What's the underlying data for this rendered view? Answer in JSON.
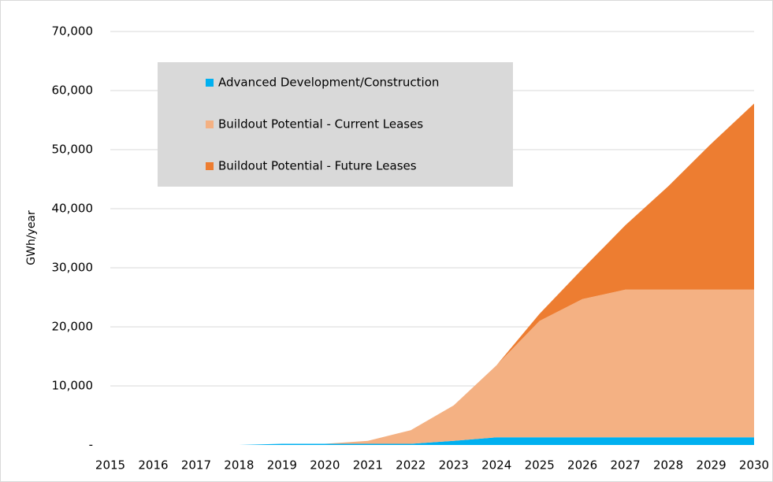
{
  "chart_data": {
    "type": "stacked_area",
    "ylabel": "GWh/year",
    "categories": [
      "2015",
      "2016",
      "2017",
      "2018",
      "2019",
      "2020",
      "2021",
      "2022",
      "2023",
      "2024",
      "2025",
      "2026",
      "2027",
      "2028",
      "2029",
      "2030"
    ],
    "series": [
      {
        "name": "Advanced Development/Construction",
        "color": "#00b0f0",
        "values": [
          0,
          0,
          0,
          0,
          200,
          200,
          200,
          200,
          700,
          1300,
          1300,
          1300,
          1300,
          1300,
          1300,
          1300
        ]
      },
      {
        "name": "Buildout Potential - Current Leases",
        "color": "#f4b183",
        "values": [
          0,
          0,
          0,
          0,
          0,
          0,
          500,
          2300,
          6000,
          12200,
          19700,
          23400,
          25000,
          25000,
          25000,
          25000
        ]
      },
      {
        "name": "Buildout Potential - Future Leases",
        "color": "#ed7d31",
        "values": [
          0,
          0,
          0,
          0,
          0,
          0,
          0,
          0,
          0,
          0,
          1200,
          5100,
          10900,
          17500,
          24700,
          31500
        ]
      }
    ],
    "ylim": [
      0,
      70000
    ],
    "yticks": [
      {
        "value": 0,
        "label": "-"
      },
      {
        "value": 10000,
        "label": "10,000"
      },
      {
        "value": 20000,
        "label": "20,000"
      },
      {
        "value": 30000,
        "label": "30,000"
      },
      {
        "value": 40000,
        "label": "40,000"
      },
      {
        "value": 50000,
        "label": "50,000"
      },
      {
        "value": 60000,
        "label": "60,000"
      },
      {
        "value": 70000,
        "label": "70,000"
      }
    ],
    "grid": true,
    "legend": "upper-left"
  }
}
